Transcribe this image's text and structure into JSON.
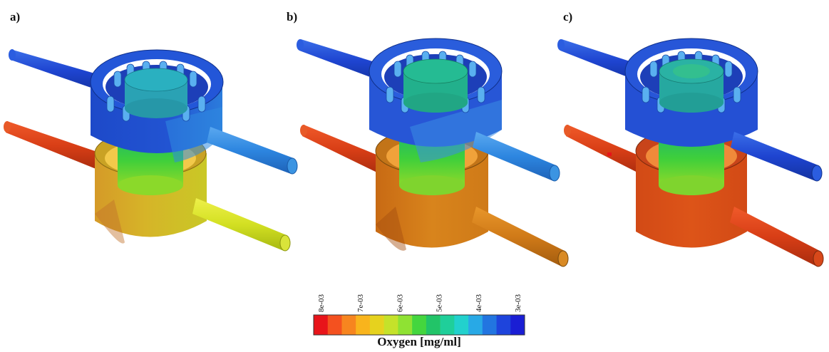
{
  "panels": [
    {
      "label": "a)"
    },
    {
      "label": "b)"
    },
    {
      "label": "c)"
    }
  ],
  "colorbar": {
    "title": "Oxygen [mg/ml]",
    "tick_labels": [
      "8e-03",
      "7e-03",
      "6e-03",
      "5e-03",
      "4e-03",
      "3e-03"
    ],
    "colors": [
      "#e8141a",
      "#f4511f",
      "#f7851f",
      "#f9b41c",
      "#e6d21e",
      "#c5e22a",
      "#8fe233",
      "#44d63e",
      "#22c468",
      "#1fcf9a",
      "#22d1cd",
      "#28a9e6",
      "#2275e0",
      "#1e44dc",
      "#1a1ed4"
    ]
  }
}
